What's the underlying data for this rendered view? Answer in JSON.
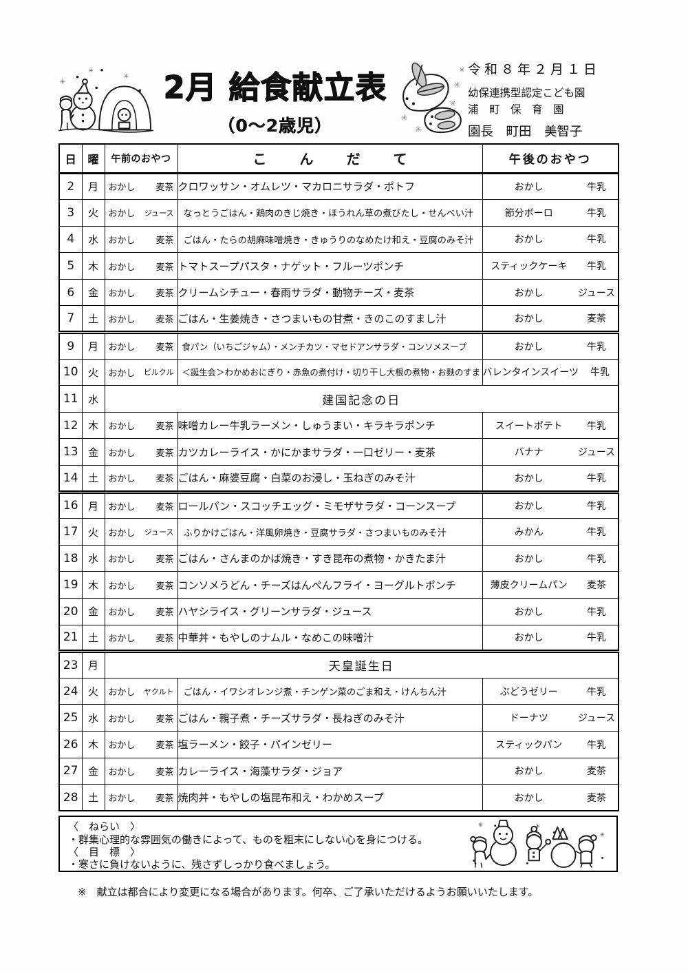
{
  "header": {
    "title": "2月 給食献立表",
    "subtitle": "（0～2歳児）",
    "date": "令和８年２月１日",
    "org_line1": "幼保連携型認定こども園",
    "org_line2": "浦　町　保　育　園",
    "director": "園長　町田　美智子"
  },
  "illustrations": {
    "header_left": "snow-hut-snowman-illustration",
    "header_right": "snow-rabbits-illustration",
    "footer": "children-snowman-illustration"
  },
  "table": {
    "headers": {
      "day": "日",
      "weekday": "曜",
      "am_snack": "午前のおやつ",
      "menu": "こ　ん　だ　て",
      "pm_snack": "午後のおやつ"
    },
    "rows": [
      {
        "day": "2",
        "weekday": "月",
        "am": [
          "おかし",
          "麦茶"
        ],
        "menu": "クロワッサン・オムレツ・マカロニサラダ・ポトフ",
        "pm": [
          "おかし",
          "牛乳"
        ]
      },
      {
        "day": "3",
        "weekday": "火",
        "am": [
          "おかし",
          "ジュース"
        ],
        "menu": "なっとうごはん・鶏肉のきじ焼き・ほうれん草の煮びたし・せんべい汁",
        "pm": [
          "節分ボーロ",
          "牛乳"
        ]
      },
      {
        "day": "4",
        "weekday": "水",
        "am": [
          "おかし",
          "麦茶"
        ],
        "menu": "ごはん・たらの胡麻味噌焼き・きゅうりのなめたけ和え・豆腐のみそ汁",
        "pm": [
          "おかし",
          "牛乳"
        ]
      },
      {
        "day": "5",
        "weekday": "木",
        "am": [
          "おかし",
          "麦茶"
        ],
        "menu": "トマトスープパスタ・ナゲット・フルーツポンチ",
        "pm": [
          "スティックケーキ",
          "牛乳"
        ]
      },
      {
        "day": "6",
        "weekday": "金",
        "am": [
          "おかし",
          "麦茶"
        ],
        "menu": "クリームシチュー・春雨サラダ・動物チーズ・麦茶",
        "pm": [
          "おかし",
          "ジュース"
        ]
      },
      {
        "day": "7",
        "weekday": "土",
        "am": [
          "おかし",
          "麦茶"
        ],
        "menu": "ごはん・生姜焼き・さつまいもの甘煮・きのこのすまし汁",
        "pm": [
          "おかし",
          "麦茶"
        ],
        "sep": true
      },
      {
        "day": "9",
        "weekday": "月",
        "am": [
          "おかし",
          "麦茶"
        ],
        "menu": "食パン（いちごジャム）・メンチカツ・マセドアンサラダ・コンソメスープ",
        "pm": [
          "おかし",
          "牛乳"
        ]
      },
      {
        "day": "10",
        "weekday": "火",
        "am": [
          "おかし",
          "ピルクル"
        ],
        "menu": "＜誕生会＞わかめおにぎり・赤魚の煮付け・切り干し大根の煮物・お麩のすまし汁",
        "pm": [
          "バレンタインスイーツ",
          "牛乳"
        ]
      },
      {
        "day": "11",
        "weekday": "水",
        "holiday": "建国記念の日"
      },
      {
        "day": "12",
        "weekday": "木",
        "am": [
          "おかし",
          "麦茶"
        ],
        "menu": "味噌カレー牛乳ラーメン・しゅうまい・キラキラポンチ",
        "pm": [
          "スイートポテト",
          "牛乳"
        ]
      },
      {
        "day": "13",
        "weekday": "金",
        "am": [
          "おかし",
          "麦茶"
        ],
        "menu": "カツカレーライス・かにかまサラダ・一口ゼリー・麦茶",
        "pm": [
          "バナナ",
          "ジュース"
        ]
      },
      {
        "day": "14",
        "weekday": "土",
        "am": [
          "おかし",
          "麦茶"
        ],
        "menu": "ごはん・麻婆豆腐・白菜のお浸し・玉ねぎのみそ汁",
        "pm": [
          "おかし",
          "牛乳"
        ],
        "sep": true
      },
      {
        "day": "16",
        "weekday": "月",
        "am": [
          "おかし",
          "麦茶"
        ],
        "menu": "ロールパン・スコッチエッグ・ミモザサラダ・コーンスープ",
        "pm": [
          "おかし",
          "牛乳"
        ]
      },
      {
        "day": "17",
        "weekday": "火",
        "am": [
          "おかし",
          "ジュース"
        ],
        "menu": "ふりかけごはん・洋風卵焼き・豆腐サラダ・さつまいものみそ汁",
        "pm": [
          "みかん",
          "牛乳"
        ]
      },
      {
        "day": "18",
        "weekday": "水",
        "am": [
          "おかし",
          "麦茶"
        ],
        "menu": "ごはん・さんまのかば焼き・すき昆布の煮物・かきたま汁",
        "pm": [
          "おかし",
          "牛乳"
        ]
      },
      {
        "day": "19",
        "weekday": "木",
        "am": [
          "おかし",
          "麦茶"
        ],
        "menu": "コンソメうどん・チーズはんぺんフライ・ヨーグルトポンチ",
        "pm": [
          "薄皮クリームパン",
          "麦茶"
        ]
      },
      {
        "day": "20",
        "weekday": "金",
        "am": [
          "おかし",
          "麦茶"
        ],
        "menu": "ハヤシライス・グリーンサラダ・ジュース",
        "pm": [
          "おかし",
          "牛乳"
        ]
      },
      {
        "day": "21",
        "weekday": "土",
        "am": [
          "おかし",
          "麦茶"
        ],
        "menu": "中華丼・もやしのナムル・なめこの味噌汁",
        "pm": [
          "おかし",
          "牛乳"
        ],
        "sep": true
      },
      {
        "day": "23",
        "weekday": "月",
        "holiday": "天皇誕生日"
      },
      {
        "day": "24",
        "weekday": "火",
        "am": [
          "おかし",
          "ヤクルト"
        ],
        "menu": "ごはん・イワシオレンジ煮・チンゲン菜のごま和え・けんちん汁",
        "pm": [
          "ぶどうゼリー",
          "牛乳"
        ]
      },
      {
        "day": "25",
        "weekday": "水",
        "am": [
          "おかし",
          "麦茶"
        ],
        "menu": "ごはん・親子煮・チーズサラダ・長ねぎのみそ汁",
        "pm": [
          "ドーナツ",
          "ジュース"
        ]
      },
      {
        "day": "26",
        "weekday": "木",
        "am": [
          "おかし",
          "麦茶"
        ],
        "menu": "塩ラーメン・餃子・パインゼリー",
        "pm": [
          "スティックパン",
          "牛乳"
        ]
      },
      {
        "day": "27",
        "weekday": "金",
        "am": [
          "おかし",
          "麦茶"
        ],
        "menu": "カレーライス・海藻サラダ・ジョア",
        "pm": [
          "おかし",
          "麦茶"
        ]
      },
      {
        "day": "28",
        "weekday": "土",
        "am": [
          "おかし",
          "麦茶"
        ],
        "menu": "焼肉丼・もやしの塩昆布和え・わかめスープ",
        "pm": [
          "おかし",
          "麦茶"
        ]
      }
    ]
  },
  "footer": {
    "aim_label": "〈　ねらい　〉",
    "aim_text": "・群集心理的な雰囲気の働きによって、ものを粗末にしない心を身につける。",
    "goal_label": "〈　目　標　〉",
    "goal_text": "・寒さに負けないように、残さずしっかり食べましょう。",
    "disclaimer": "※　献立は都合により変更になる場合があります。何卒、ご了承いただけるようお願いいたします。"
  }
}
